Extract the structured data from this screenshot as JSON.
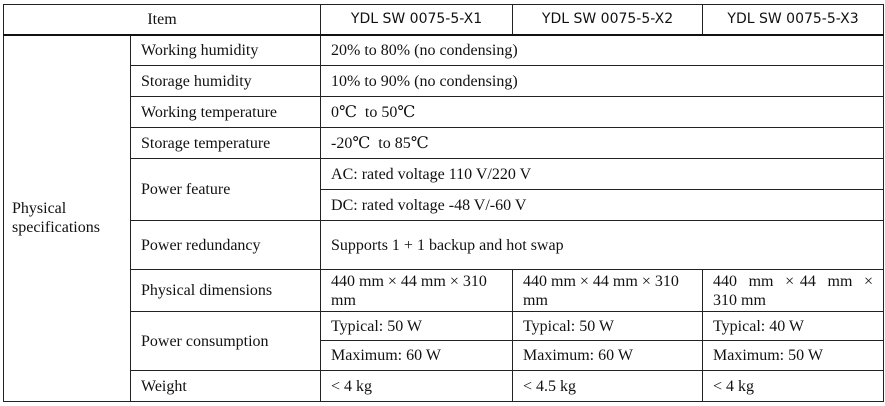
{
  "table": {
    "header": {
      "item": "Item",
      "models": [
        "YDL SW 0075-5-X1",
        "YDL SW 0075-5-X2",
        "YDL SW 0075-5-X3"
      ]
    },
    "category": "Physical specifications",
    "rows": {
      "working_humidity": {
        "label": "Working humidity",
        "value": "20% to 80% (no condensing)"
      },
      "storage_humidity": {
        "label": "Storage humidity",
        "value": "10% to 90% (no condensing)"
      },
      "working_temperature": {
        "label": "Working temperature",
        "value": "0℃  to 50℃"
      },
      "storage_temperature": {
        "label": "Storage temperature",
        "value": "-20℃  to 85℃"
      },
      "power_feature": {
        "label": "Power feature",
        "ac": "AC: rated voltage 110 V/220 V",
        "dc": "DC: rated voltage -48 V/-60 V"
      },
      "power_redundancy": {
        "label": "Power redundancy",
        "value": "Supports 1 + 1 backup and hot swap"
      },
      "physical_dimensions": {
        "label": "Physical dimensions",
        "values": [
          "440 mm × 44 mm × 310 mm",
          "440 mm × 44 mm × 310 mm",
          "440  mm  × 44  mm  × 310 mm"
        ]
      },
      "power_consumption": {
        "label": "Power consumption",
        "typical": [
          "Typical: 50 W",
          "Typical: 50 W",
          "Typical: 40 W"
        ],
        "maximum": [
          "Maximum: 60 W",
          "Maximum: 60 W",
          "Maximum: 50 W"
        ]
      },
      "weight": {
        "label": "Weight",
        "values": [
          "< 4 kg",
          "< 4.5 kg",
          "< 4 kg"
        ]
      }
    }
  }
}
